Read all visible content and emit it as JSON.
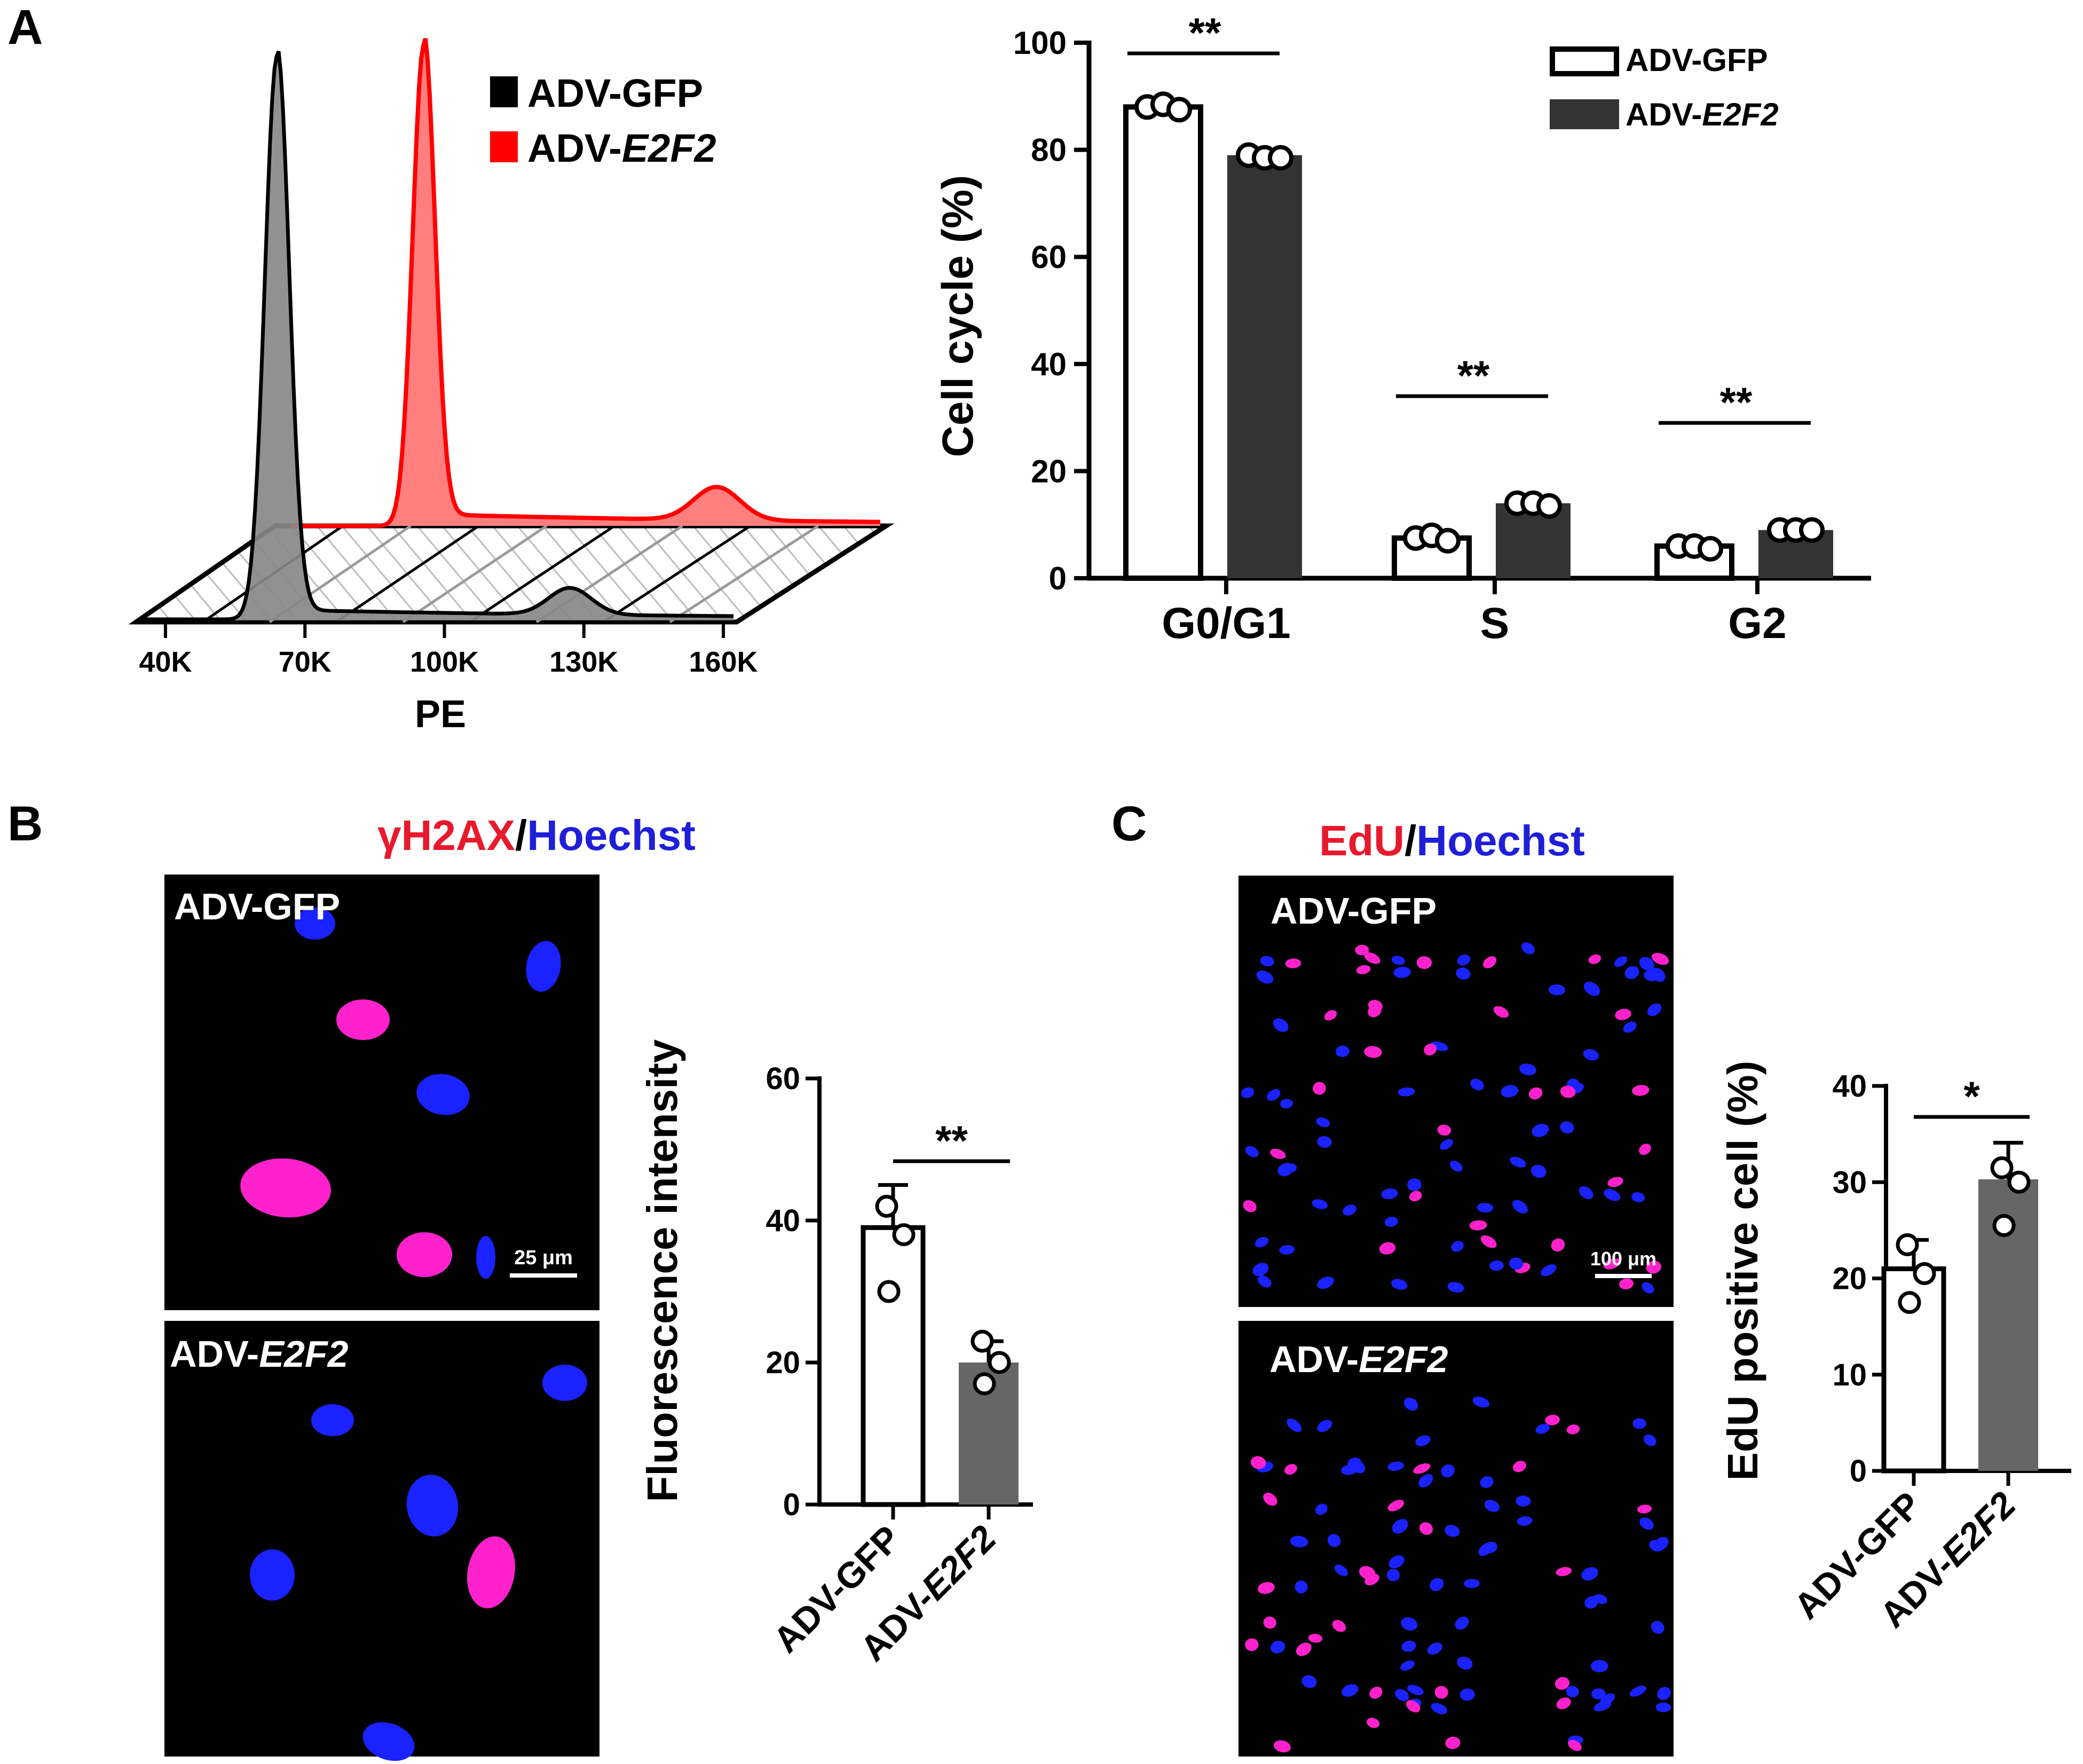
{
  "panels": {
    "A": {
      "label": "A"
    },
    "B": {
      "label": "B",
      "stain_1": "γH2AX",
      "stain_sep": "/",
      "stain_2": "Hoechst"
    },
    "C": {
      "label": "C",
      "stain_1": "EdU",
      "stain_sep": "/",
      "stain_2": "Hoechst"
    }
  },
  "micrographs": {
    "gfp": {
      "prefix": "ADV-",
      "gene": "GFP"
    },
    "e2f2": {
      "prefix": "ADV-",
      "gene": "E2F2"
    },
    "b_scale": "25 μm",
    "c_scale": "100 μm"
  },
  "colors": {
    "gfp_bar": "#ffffff",
    "e2f2_bar_a": "#333333",
    "e2f2_bar_bc": "#666666",
    "histogram_gfp": "#888888",
    "histogram_e2f2": "#ff7f7f",
    "stain_red": "#e8192c",
    "stain_blue": "#1f1fd8",
    "nucleus_blue": "#1a22ff",
    "nucleus_pink": "#ff22cc"
  },
  "chart_data": [
    {
      "id": "A-histogram",
      "type": "area",
      "xlabel": "PE",
      "xticks": [
        "40K",
        "70K",
        "100K",
        "130K",
        "160K"
      ],
      "xlim": [
        40000,
        160000
      ],
      "legend": [
        {
          "prefix": "ADV-",
          "gene": "GFP",
          "color": "#000000"
        },
        {
          "prefix": "ADV-",
          "gene": "E2F2",
          "color": "#ff0000"
        }
      ],
      "series": [
        {
          "name": "ADV-GFP",
          "peaks": [
            {
              "x": 64000,
              "height": 1.0
            },
            {
              "x": 127000,
              "height": 0.08
            }
          ]
        },
        {
          "name": "ADV-E2F2",
          "peaks": [
            {
              "x": 64000,
              "height": 1.0
            },
            {
              "x": 127000,
              "height": 0.08
            }
          ]
        }
      ]
    },
    {
      "id": "A-bars",
      "type": "bar",
      "ylabel": "Cell cycle (%)",
      "ylim": [
        0,
        100
      ],
      "yticks": [
        "0",
        "20",
        "40",
        "60",
        "80",
        "100"
      ],
      "categories": [
        "G0/G1",
        "S",
        "G2"
      ],
      "series": [
        {
          "name": "ADV-GFP",
          "values": [
            88,
            7.5,
            6
          ],
          "points": [
            [
              88,
              88.5,
              87.5
            ],
            [
              7.5,
              8,
              7
            ],
            [
              6,
              6,
              5.5
            ]
          ]
        },
        {
          "name": "ADV-E2F2",
          "values": [
            79,
            14,
            9
          ],
          "points": [
            [
              79,
              78.5,
              78.5
            ],
            [
              14,
              14,
              13.5
            ],
            [
              9,
              9,
              9
            ]
          ]
        }
      ],
      "legend": [
        {
          "prefix": "ADV-",
          "gene": "GFP"
        },
        {
          "prefix": "ADV-",
          "gene": "E2F2"
        }
      ],
      "significance": [
        "**",
        "**",
        "**"
      ]
    },
    {
      "id": "B-bars",
      "type": "bar",
      "ylabel": "Fluorescence intensity",
      "ylim": [
        0,
        60
      ],
      "yticks": [
        "0",
        "20",
        "40",
        "60"
      ],
      "categories": [
        {
          "prefix": "ADV-",
          "gene": "GFP"
        },
        {
          "prefix": "ADV-",
          "gene": "E2F2"
        }
      ],
      "values": [
        39,
        20
      ],
      "errors": [
        6,
        3
      ],
      "points": [
        [
          42,
          38,
          30
        ],
        [
          23,
          20,
          17
        ]
      ],
      "significance": "**"
    },
    {
      "id": "C-bars",
      "type": "bar",
      "ylabel": "EdU positive cell (%)",
      "ylim": [
        0,
        40
      ],
      "yticks": [
        "0",
        "10",
        "20",
        "30",
        "40"
      ],
      "categories": [
        {
          "prefix": "ADV-",
          "gene": "GFP"
        },
        {
          "prefix": "ADV-",
          "gene": "E2F2"
        }
      ],
      "values": [
        21,
        30.3
      ],
      "errors": [
        3,
        3.8
      ],
      "points": [
        [
          23.5,
          20.5,
          17.5
        ],
        [
          31.5,
          30,
          25.5
        ]
      ],
      "significance": "*"
    }
  ]
}
